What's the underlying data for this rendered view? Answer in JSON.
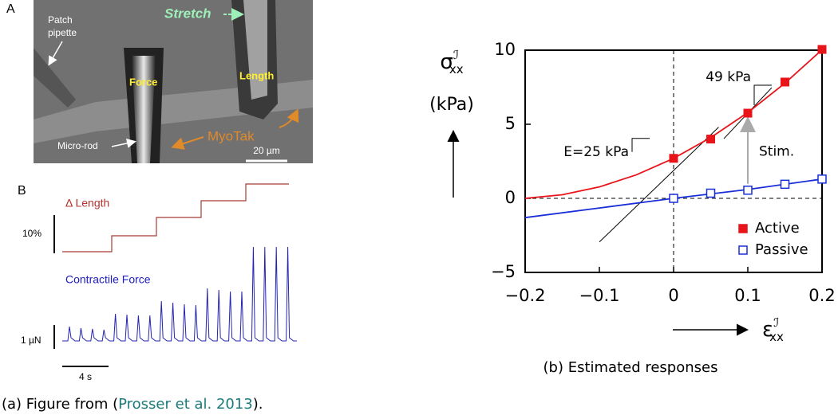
{
  "figure_a": {
    "panel_a_label": "A",
    "patch_pipette": [
      "Patch",
      "pipette"
    ],
    "stretch": "Stretch",
    "force": "Force",
    "length": "Length",
    "micro_rod": "Micro-rod",
    "myotak": "MyoTak",
    "scale_bar": "20 µm",
    "panel_b_label": "B",
    "length_trace": "Δ Length",
    "length_scale": "10%",
    "force_trace": "Contractile Force",
    "force_scale": "1 µN",
    "time_scale": "4 s",
    "caption": {
      "prefix": "(a) Figure from (",
      "citation": "Prosser et al. 2013",
      "suffix": ")."
    }
  },
  "chart_data": {
    "type": "scatter",
    "y_label": {
      "symbol": "σ",
      "superscript": "ℐ",
      "subscript": "xx",
      "unit": "(kPa)"
    },
    "x_label": {
      "symbol": "ε",
      "superscript": "ℐ",
      "subscript": "xx"
    },
    "caption": "(b) Estimated responses",
    "xlim": [
      -0.2,
      0.2
    ],
    "ylim": [
      -5,
      10
    ],
    "xticks": [
      {
        "value": -0.2,
        "label": "−0.2"
      },
      {
        "value": -0.1,
        "label": "−0.1"
      },
      0,
      0.1,
      0.2
    ],
    "yticks": [
      {
        "value": -5,
        "label": "−5"
      },
      0,
      5,
      10
    ],
    "legend": "lower right",
    "series": [
      {
        "name": "Active",
        "color": "#e8141a",
        "marker": "filled-square",
        "x": [
          0,
          0.05,
          0.1,
          0.15,
          0.2
        ],
        "values": [
          2.7,
          4.0,
          5.75,
          7.85,
          10.05
        ],
        "fit": {
          "x": [
            -0.2,
            -0.15,
            -0.1,
            -0.05,
            0,
            0.05,
            0.1,
            0.15,
            0.2
          ],
          "values": [
            0,
            0.24,
            0.77,
            1.59,
            2.7,
            4.1,
            5.79,
            7.77,
            10.03
          ]
        }
      },
      {
        "name": "Passive",
        "color": "#1a2ed8",
        "marker": "open-square",
        "x": [
          0,
          0.05,
          0.1,
          0.15,
          0.2
        ],
        "values": [
          0,
          0.35,
          0.55,
          0.95,
          1.3
        ],
        "fit": {
          "x": [
            -0.2,
            -0.1,
            0,
            0.1,
            0.2
          ],
          "values": [
            -1.3,
            -0.65,
            0,
            0.6,
            1.3
          ]
        }
      }
    ],
    "annotations": {
      "e_active_0": "E=25 kPa",
      "e_active_1": "49 kPa",
      "stim": "Stim."
    }
  }
}
